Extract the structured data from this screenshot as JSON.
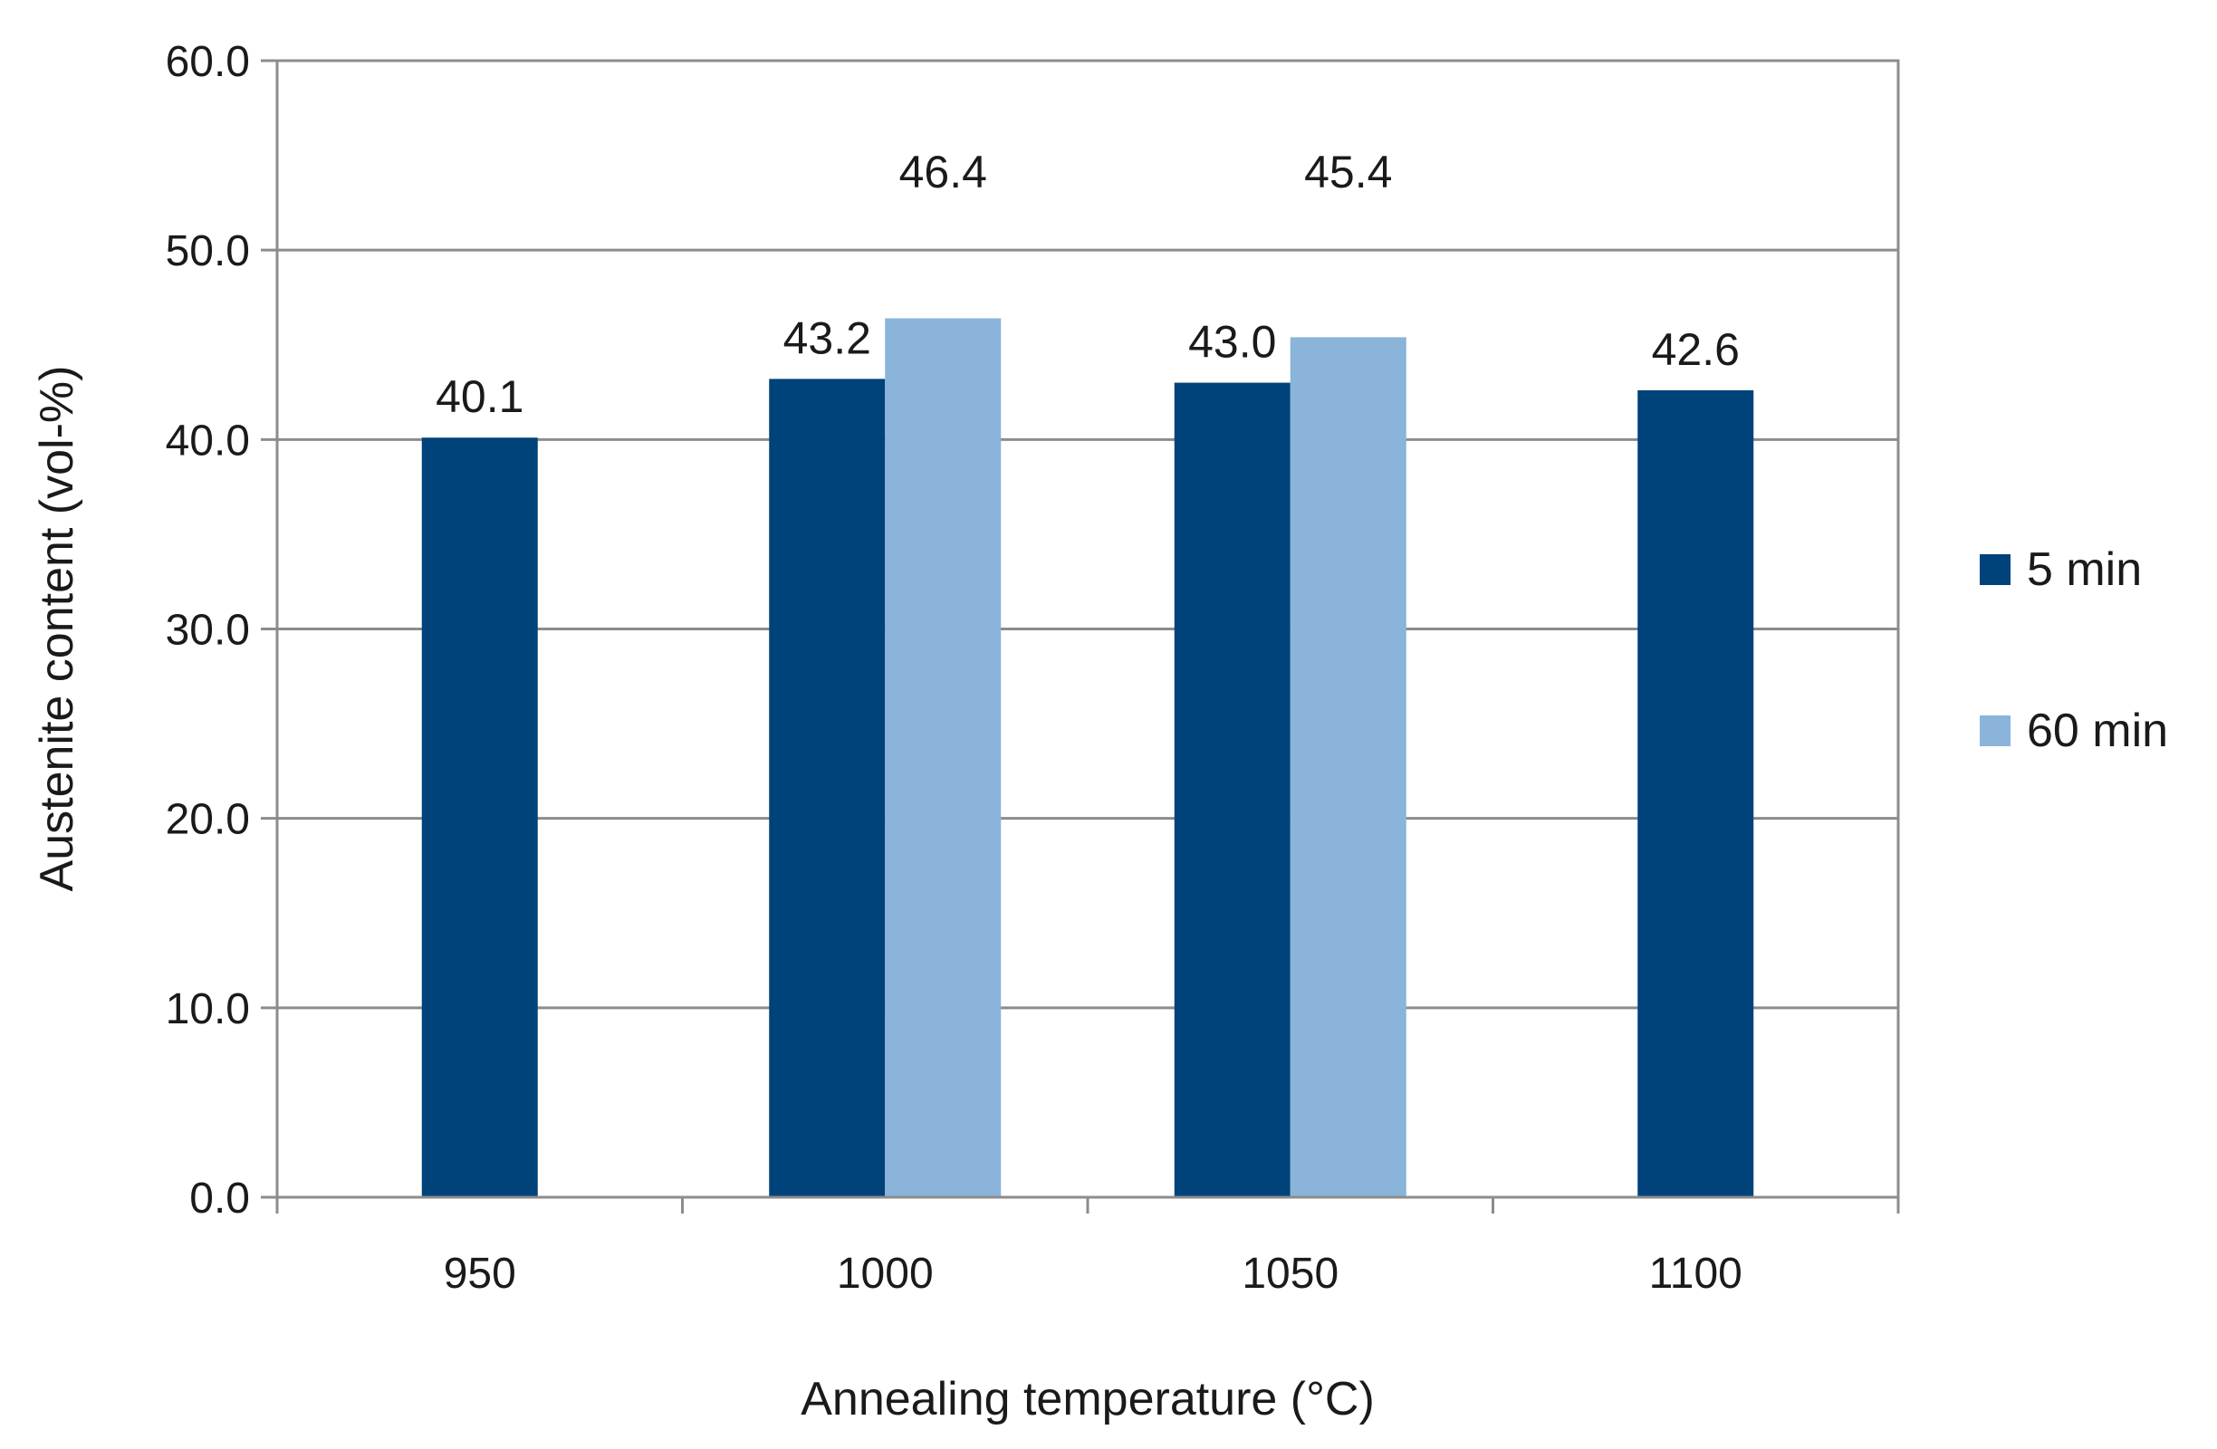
{
  "chart_data": {
    "type": "bar",
    "title": "",
    "xlabel": "Annealing temperature (°C)",
    "ylabel": "Austenite content (vol-%)",
    "categories": [
      "950",
      "1000",
      "1050",
      "1100"
    ],
    "series": [
      {
        "name": "5 min",
        "color": "#00427A",
        "values": [
          40.1,
          43.2,
          43.0,
          42.6
        ],
        "labels": [
          "40.1",
          "43.2",
          "43.0",
          "42.6"
        ]
      },
      {
        "name": "60 min",
        "color": "#8AB4DA",
        "values": [
          null,
          46.4,
          45.4,
          null
        ],
        "labels": [
          null,
          "46.4",
          "45.4",
          null
        ]
      }
    ],
    "ylim": [
      0,
      60
    ],
    "yticks": [
      0,
      10,
      20,
      30,
      40,
      50,
      60
    ],
    "ytick_labels": [
      "0.0",
      "10.0",
      "20.0",
      "30.0",
      "40.0",
      "50.0",
      "60.0"
    ],
    "grid": true,
    "legend": "right"
  }
}
